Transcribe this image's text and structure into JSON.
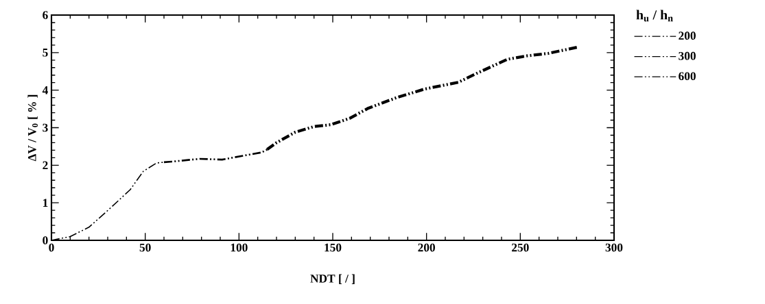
{
  "chart_data": {
    "type": "line",
    "xlabel": "NDT [ / ]",
    "ylabel": "ΔV / V$_{0}$ [ % ]",
    "legend_title": "h$_{u}$ / h$_{n}$",
    "xlim": [
      0,
      300
    ],
    "ylim": [
      0,
      6
    ],
    "xticks": [
      0,
      50,
      100,
      150,
      200,
      250,
      300
    ],
    "yticks": [
      0,
      1,
      2,
      3,
      4,
      5,
      6
    ],
    "legend": "top right",
    "grid": false,
    "line_style": "dashed",
    "marker": "none",
    "series": [
      {
        "name": "200",
        "color": "#000000",
        "x": [
          115,
          120,
          130,
          140,
          149,
          159,
          169,
          184,
          199,
          217,
          226,
          243,
          253,
          265,
          281
        ],
        "values": [
          2.42,
          2.6,
          2.88,
          3.03,
          3.08,
          3.25,
          3.52,
          3.8,
          4.03,
          4.21,
          4.43,
          4.82,
          4.91,
          4.98,
          5.15
        ]
      },
      {
        "name": "300",
        "color": "#000000",
        "x": [
          60,
          65,
          79,
          91,
          103,
          112,
          115
        ],
        "values": [
          2.08,
          2.1,
          2.17,
          2.15,
          2.26,
          2.34,
          2.42
        ]
      },
      {
        "name": "600",
        "color": "#000000",
        "x": [
          0,
          10,
          20,
          31,
          42,
          49,
          56,
          60
        ],
        "values": [
          0,
          0.1,
          0.35,
          0.84,
          1.35,
          1.84,
          2.06,
          2.08
        ]
      }
    ]
  }
}
